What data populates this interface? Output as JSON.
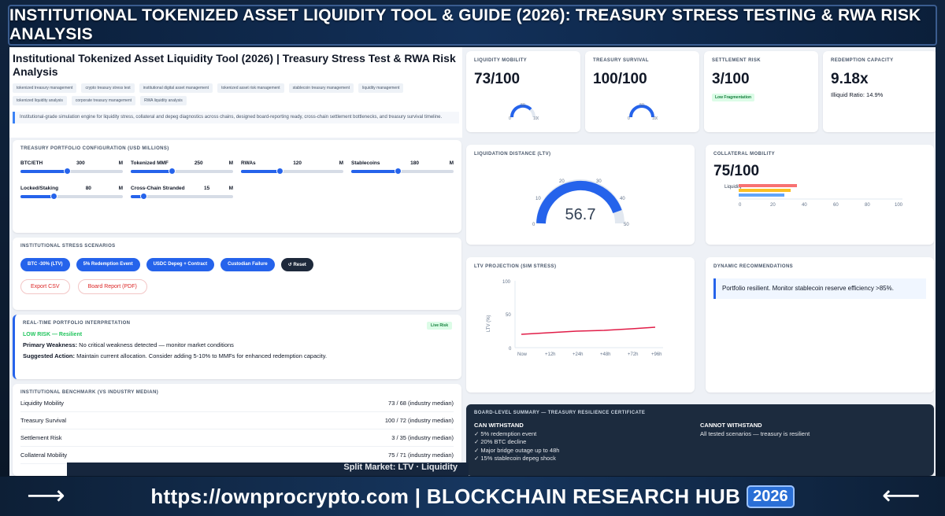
{
  "banner": {
    "title": "INSTITUTIONAL TOKENIZED ASSET LIQUIDITY TOOL & GUIDE (2026): TREASURY STRESS TESTING & RWA RISK ANALYSIS"
  },
  "header": {
    "title": "Institutional Tokenized Asset Liquidity Tool (2026) | Treasury Stress Test & RWA Risk Analysis",
    "tags": [
      "tokenized treasury management",
      "crypto treasury stress test",
      "institutional digital asset management",
      "tokenized asset risk management",
      "stablecoin treasury management",
      "liquidity management",
      "tokenized liquidity analysis",
      "corporate treasury management",
      "RWA liquidity analysis"
    ],
    "description": "Institutional-grade simulation engine for liquidity stress, collateral and depeg diagnostics across chains, designed board-reporting ready, cross-chain settlement bottlenecks, and treasury survival timeline."
  },
  "config": {
    "title": "TREASURY PORTFOLIO CONFIGURATION (USD MILLIONS)",
    "sliders": [
      {
        "label": "BTC/ETH",
        "value": "300",
        "unit": "M",
        "pct": 0.45
      },
      {
        "label": "Tokenized MMF",
        "value": "250",
        "unit": "M",
        "pct": 0.4
      },
      {
        "label": "RWAs",
        "value": "120",
        "unit": "M",
        "pct": 0.38
      },
      {
        "label": "Stablecoins",
        "value": "180",
        "unit": "M",
        "pct": 0.45
      },
      {
        "label": "Locked/Staking",
        "value": "80",
        "unit": "M",
        "pct": 0.32
      },
      {
        "label": "Cross-Chain Stranded",
        "value": "15",
        "unit": "M",
        "pct": 0.12
      }
    ]
  },
  "scenarios": {
    "title": "INSTITUTIONAL STRESS SCENARIOS",
    "buttons": [
      "BTC -30% (LTV)",
      "5% Redemption Event",
      "USDC Depeg + Contract",
      "Custodian Failure"
    ],
    "reset": "↺ Reset",
    "export_csv": "Export CSV",
    "board_report": "Board Report (PDF)"
  },
  "interpretation": {
    "title": "REAL-TIME PORTFOLIO INTERPRETATION",
    "live": "Live Risk",
    "status": "LOW RISK — Resilient",
    "weakness_label": "Primary Weakness:",
    "weakness": "No critical weakness detected — monitor market conditions",
    "action_label": "Suggested Action:",
    "action": "Maintain current allocation. Consider adding 5-10% to MMFs for enhanced redemption capacity."
  },
  "benchmark": {
    "title": "INSTITUTIONAL BENCHMARK (VS INDUSTRY MEDIAN)",
    "rows": [
      {
        "label": "Liquidity Mobility",
        "value": "73 / 68 (industry median)"
      },
      {
        "label": "Treasury Survival",
        "value": "100 / 72 (industry median)"
      },
      {
        "label": "Settlement Risk",
        "value": "3 / 35 (industry median)"
      },
      {
        "label": "Collateral Mobility",
        "value": "75 / 71 (industry median)"
      }
    ]
  },
  "kpis": [
    {
      "title": "LIQUIDITY MOBILITY",
      "value": "73/100",
      "g_mid": "50",
      "g_lo": "0",
      "g_hi": "100",
      "level": 0.73
    },
    {
      "title": "TREASURY SURVIVAL",
      "value": "100/100",
      "g_mid": "50",
      "g_lo": "0",
      "g_hi": "100",
      "level": 1.0
    },
    {
      "title": "SETTLEMENT RISK",
      "value": "3/100",
      "pill": "Low Fragmentation"
    },
    {
      "title": "REDEMPTION CAPACITY",
      "value": "9.18x",
      "liquid": "Illiquid Ratio: 14.9%"
    }
  ],
  "liquidation": {
    "title": "LIQUIDATION DISTANCE (LTV)",
    "value": "56.7",
    "ticks": [
      "0",
      "10",
      "20",
      "30",
      "40",
      "50"
    ]
  },
  "collateral": {
    "title": "COLLATERAL MOBILITY",
    "value": "75/100",
    "y_label": "Liquidity",
    "x_ticks": [
      "0",
      "20",
      "40",
      "60",
      "80",
      "100"
    ]
  },
  "ltv_chart": {
    "title": "LTV PROJECTION (SIM STRESS)",
    "ylabel": "LTV (%)",
    "y_ticks": [
      "100",
      "50",
      "0"
    ],
    "x_ticks": [
      "Now",
      "+12h",
      "+24h",
      "+48h",
      "+72h",
      "+96h"
    ]
  },
  "recommendations": {
    "title": "DYNAMIC RECOMMENDATIONS",
    "text": "Portfolio resilient. Monitor stablecoin reserve efficiency >85%."
  },
  "board": {
    "title": "BOARD-LEVEL SUMMARY — TREASURY RESILIENCE CERTIFICATE",
    "can_title": "CAN WITHSTAND",
    "can": [
      "✓ 5% redemption event",
      "✓ 20% BTC decline",
      "✓ Major bridge outage up to 48h",
      "✓ 15% stablecoin depeg shock"
    ],
    "cannot_title": "CANNOT WITHSTAND",
    "cannot": "All tested scenarios — treasury is resilient"
  },
  "strip": {
    "text": "Split Market: LTV · Liquidity"
  },
  "footer": {
    "url": "https://ownprocrypto.com | BLOCKCHAIN RESEARCH HUB",
    "year": "2026"
  }
}
